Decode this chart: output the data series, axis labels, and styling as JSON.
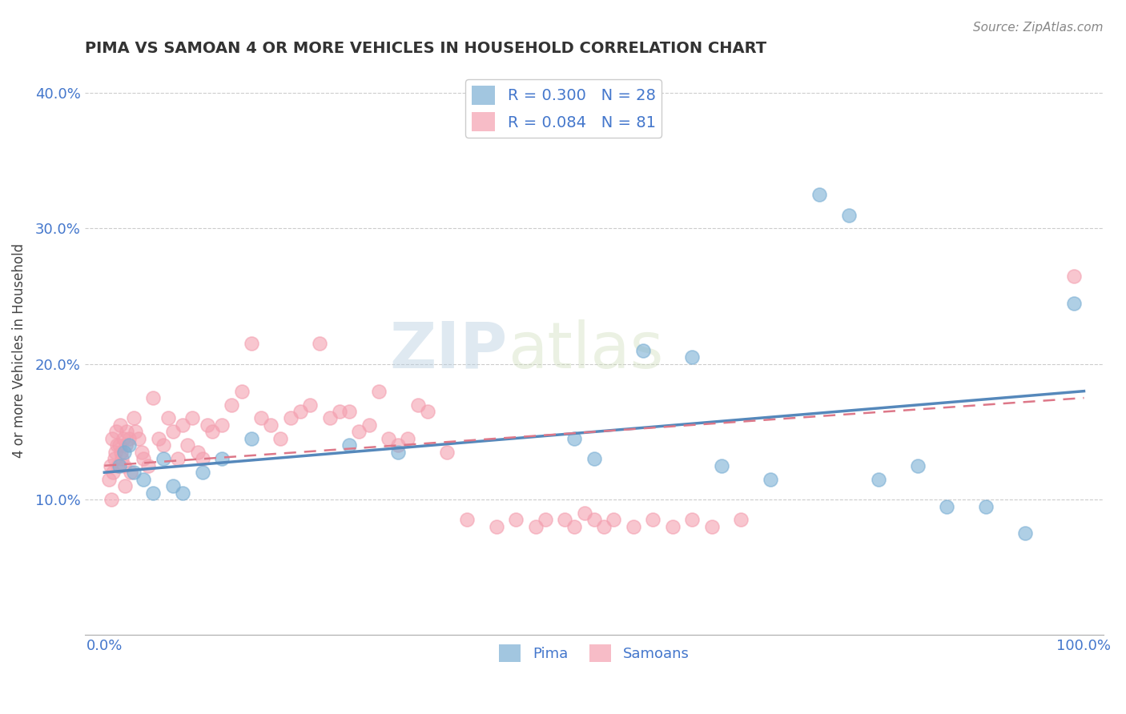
{
  "title": "PIMA VS SAMOAN 4 OR MORE VEHICLES IN HOUSEHOLD CORRELATION CHART",
  "source_text": "Source: ZipAtlas.com",
  "ylabel": "4 or more Vehicles in Household",
  "xlim": [
    -2,
    102
  ],
  "ylim": [
    0,
    42
  ],
  "x_ticks": [
    0,
    100
  ],
  "x_tick_labels": [
    "0.0%",
    "100.0%"
  ],
  "y_ticks": [
    10,
    20,
    30,
    40
  ],
  "y_tick_labels": [
    "10.0%",
    "20.0%",
    "30.0%",
    "40.0%"
  ],
  "pima_color": "#7bafd4",
  "samoan_color": "#f4a0b0",
  "pima_R": 0.3,
  "pima_N": 28,
  "samoan_R": 0.084,
  "samoan_N": 81,
  "legend_text_color": "#4477cc",
  "watermark_zip": "ZIP",
  "watermark_atlas": "atlas",
  "pima_x": [
    1.5,
    2.0,
    2.5,
    3.0,
    4.0,
    5.0,
    6.0,
    7.0,
    8.0,
    10.0,
    12.0,
    15.0,
    25.0,
    30.0,
    48.0,
    50.0,
    55.0,
    60.0,
    63.0,
    68.0,
    73.0,
    76.0,
    79.0,
    83.0,
    86.0,
    90.0,
    94.0,
    99.0
  ],
  "pima_y": [
    12.5,
    13.5,
    14.0,
    12.0,
    11.5,
    10.5,
    13.0,
    11.0,
    10.5,
    12.0,
    13.0,
    14.5,
    14.0,
    13.5,
    14.5,
    13.0,
    21.0,
    20.5,
    12.5,
    11.5,
    32.5,
    31.0,
    11.5,
    12.5,
    9.5,
    9.5,
    7.5,
    24.5
  ],
  "samoan_x": [
    0.5,
    0.6,
    0.7,
    0.8,
    0.9,
    1.0,
    1.1,
    1.2,
    1.3,
    1.4,
    1.5,
    1.6,
    1.7,
    1.8,
    1.9,
    2.0,
    2.1,
    2.2,
    2.3,
    2.5,
    2.7,
    3.0,
    3.2,
    3.5,
    3.8,
    4.0,
    4.5,
    5.0,
    5.5,
    6.0,
    6.5,
    7.0,
    7.5,
    8.0,
    8.5,
    9.0,
    9.5,
    10.0,
    10.5,
    11.0,
    12.0,
    13.0,
    14.0,
    15.0,
    16.0,
    17.0,
    18.0,
    19.0,
    20.0,
    21.0,
    22.0,
    23.0,
    24.0,
    25.0,
    26.0,
    27.0,
    28.0,
    29.0,
    30.0,
    31.0,
    32.0,
    33.0,
    35.0,
    37.0,
    40.0,
    42.0,
    44.0,
    45.0,
    47.0,
    48.0,
    49.0,
    50.0,
    51.0,
    52.0,
    54.0,
    56.0,
    58.0,
    60.0,
    62.0,
    65.0,
    99.0
  ],
  "samoan_y": [
    11.5,
    12.5,
    10.0,
    14.5,
    12.0,
    13.0,
    13.5,
    15.0,
    14.0,
    12.5,
    14.0,
    15.5,
    13.5,
    13.0,
    14.5,
    12.5,
    11.0,
    14.0,
    15.0,
    14.5,
    12.0,
    16.0,
    15.0,
    14.5,
    13.5,
    13.0,
    12.5,
    17.5,
    14.5,
    14.0,
    16.0,
    15.0,
    13.0,
    15.5,
    14.0,
    16.0,
    13.5,
    13.0,
    15.5,
    15.0,
    15.5,
    17.0,
    18.0,
    21.5,
    16.0,
    15.5,
    14.5,
    16.0,
    16.5,
    17.0,
    21.5,
    16.0,
    16.5,
    16.5,
    15.0,
    15.5,
    18.0,
    14.5,
    14.0,
    14.5,
    17.0,
    16.5,
    13.5,
    8.5,
    8.0,
    8.5,
    8.0,
    8.5,
    8.5,
    8.0,
    9.0,
    8.5,
    8.0,
    8.5,
    8.0,
    8.5,
    8.0,
    8.5,
    8.0,
    8.5,
    26.5
  ],
  "pima_line_x": [
    0,
    100
  ],
  "pima_line_y": [
    12.0,
    18.0
  ],
  "samoan_line_x": [
    0,
    100
  ],
  "samoan_line_y": [
    12.5,
    17.5
  ]
}
